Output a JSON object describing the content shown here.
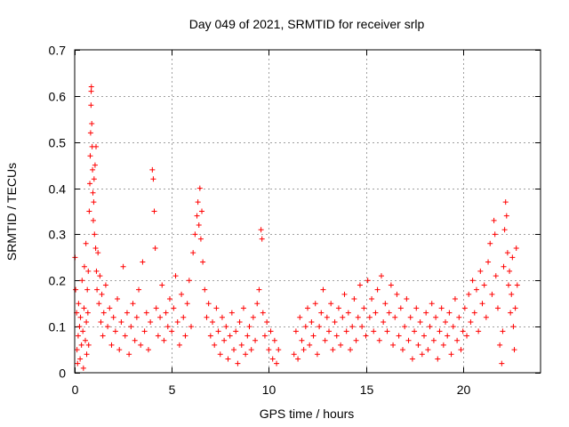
{
  "chart_data": {
    "type": "scatter",
    "title": "Day 049 of 2021, SRMTID for receiver srlp",
    "xlabel": "GPS time / hours",
    "ylabel": "SRMTID / TECUs",
    "xlim": [
      0,
      24
    ],
    "ylim": [
      0,
      0.7
    ],
    "xticks": [
      0,
      5,
      10,
      15,
      20
    ],
    "yticks": [
      0,
      0.1,
      0.2,
      0.3,
      0.4,
      0.5,
      0.6,
      0.7
    ],
    "grid": true,
    "marker": "plus",
    "color": "#ff0000",
    "series": [
      {
        "name": "SRMTID",
        "points": [
          [
            0.02,
            0.25
          ],
          [
            0.05,
            0.18
          ],
          [
            0.1,
            0.13
          ],
          [
            0.12,
            0.05
          ],
          [
            0.15,
            0.02
          ],
          [
            0.18,
            0.08
          ],
          [
            0.2,
            0.15
          ],
          [
            0.25,
            0.1
          ],
          [
            0.28,
            0.03
          ],
          [
            0.3,
            0.12
          ],
          [
            0.35,
            0.06
          ],
          [
            0.38,
            0.2
          ],
          [
            0.42,
            0.09
          ],
          [
            0.45,
            0.01
          ],
          [
            0.48,
            0.14
          ],
          [
            0.5,
            0.23
          ],
          [
            0.55,
            0.07
          ],
          [
            0.58,
            0.28
          ],
          [
            0.6,
            0.11
          ],
          [
            0.62,
            0.04
          ],
          [
            0.65,
            0.18
          ],
          [
            0.68,
            0.13
          ],
          [
            0.7,
            0.22
          ],
          [
            0.72,
            0.06
          ],
          [
            0.75,
            0.35
          ],
          [
            0.78,
            0.41
          ],
          [
            0.8,
            0.47
          ],
          [
            0.82,
            0.52
          ],
          [
            0.84,
            0.58
          ],
          [
            0.85,
            0.61
          ],
          [
            0.86,
            0.62
          ],
          [
            0.88,
            0.54
          ],
          [
            0.9,
            0.49
          ],
          [
            0.92,
            0.44
          ],
          [
            0.94,
            0.39
          ],
          [
            0.96,
            0.33
          ],
          [
            0.98,
            0.37
          ],
          [
            1.0,
            0.42
          ],
          [
            1.02,
            0.3
          ],
          [
            1.05,
            0.45
          ],
          [
            1.08,
            0.27
          ],
          [
            1.1,
            0.49
          ],
          [
            1.12,
            0.22
          ],
          [
            1.15,
            0.18
          ],
          [
            1.2,
            0.26
          ],
          [
            1.25,
            0.15
          ],
          [
            1.3,
            0.21
          ],
          [
            1.35,
            0.11
          ],
          [
            1.4,
            0.17
          ],
          [
            1.45,
            0.08
          ],
          [
            1.5,
            0.13
          ],
          [
            1.6,
            0.19
          ],
          [
            1.7,
            0.1
          ],
          [
            1.8,
            0.14
          ],
          [
            1.9,
            0.06
          ],
          [
            2.0,
            0.12
          ],
          [
            2.1,
            0.09
          ],
          [
            2.2,
            0.16
          ],
          [
            2.3,
            0.05
          ],
          [
            2.4,
            0.11
          ],
          [
            2.5,
            0.23
          ],
          [
            2.6,
            0.08
          ],
          [
            2.7,
            0.13
          ],
          [
            2.8,
            0.04
          ],
          [
            2.9,
            0.1
          ],
          [
            3.0,
            0.15
          ],
          [
            3.1,
            0.07
          ],
          [
            3.2,
            0.12
          ],
          [
            3.3,
            0.18
          ],
          [
            3.4,
            0.06
          ],
          [
            3.5,
            0.24
          ],
          [
            3.6,
            0.09
          ],
          [
            3.7,
            0.13
          ],
          [
            3.8,
            0.05
          ],
          [
            3.9,
            0.11
          ],
          [
            4.0,
            0.44
          ],
          [
            4.05,
            0.42
          ],
          [
            4.1,
            0.35
          ],
          [
            4.15,
            0.27
          ],
          [
            4.2,
            0.14
          ],
          [
            4.3,
            0.08
          ],
          [
            4.4,
            0.12
          ],
          [
            4.5,
            0.19
          ],
          [
            4.6,
            0.07
          ],
          [
            4.7,
            0.13
          ],
          [
            4.8,
            0.1
          ],
          [
            4.9,
            0.16
          ],
          [
            5.0,
            0.09
          ],
          [
            5.1,
            0.14
          ],
          [
            5.2,
            0.21
          ],
          [
            5.3,
            0.11
          ],
          [
            5.4,
            0.06
          ],
          [
            5.5,
            0.17
          ],
          [
            5.6,
            0.12
          ],
          [
            5.7,
            0.08
          ],
          [
            5.8,
            0.15
          ],
          [
            5.9,
            0.2
          ],
          [
            6.0,
            0.1
          ],
          [
            6.1,
            0.26
          ],
          [
            6.2,
            0.3
          ],
          [
            6.3,
            0.34
          ],
          [
            6.35,
            0.37
          ],
          [
            6.4,
            0.32
          ],
          [
            6.45,
            0.4
          ],
          [
            6.5,
            0.29
          ],
          [
            6.55,
            0.35
          ],
          [
            6.6,
            0.24
          ],
          [
            6.7,
            0.18
          ],
          [
            6.8,
            0.12
          ],
          [
            6.9,
            0.15
          ],
          [
            7.0,
            0.08
          ],
          [
            7.1,
            0.11
          ],
          [
            7.2,
            0.06
          ],
          [
            7.3,
            0.14
          ],
          [
            7.4,
            0.09
          ],
          [
            7.5,
            0.04
          ],
          [
            7.6,
            0.12
          ],
          [
            7.7,
            0.07
          ],
          [
            7.8,
            0.1
          ],
          [
            7.9,
            0.03
          ],
          [
            8.0,
            0.08
          ],
          [
            8.1,
            0.13
          ],
          [
            8.2,
            0.05
          ],
          [
            8.3,
            0.09
          ],
          [
            8.4,
            0.02
          ],
          [
            8.5,
            0.11
          ],
          [
            8.6,
            0.06
          ],
          [
            8.7,
            0.14
          ],
          [
            8.8,
            0.04
          ],
          [
            8.9,
            0.08
          ],
          [
            9.0,
            0.1
          ],
          [
            9.1,
            0.05
          ],
          [
            9.2,
            0.12
          ],
          [
            9.3,
            0.07
          ],
          [
            9.4,
            0.15
          ],
          [
            9.5,
            0.18
          ],
          [
            9.6,
            0.31
          ],
          [
            9.65,
            0.29
          ],
          [
            9.7,
            0.13
          ],
          [
            9.8,
            0.08
          ],
          [
            9.9,
            0.11
          ],
          [
            10.0,
            0.05
          ],
          [
            10.1,
            0.09
          ],
          [
            10.2,
            0.03
          ],
          [
            10.3,
            0.07
          ],
          [
            10.4,
            0.02
          ],
          [
            10.5,
            0.05
          ],
          [
            11.3,
            0.04
          ],
          [
            11.4,
            0.09
          ],
          [
            11.5,
            0.03
          ],
          [
            11.6,
            0.12
          ],
          [
            11.7,
            0.07
          ],
          [
            11.8,
            0.05
          ],
          [
            11.9,
            0.1
          ],
          [
            12.0,
            0.14
          ],
          [
            12.1,
            0.06
          ],
          [
            12.2,
            0.11
          ],
          [
            12.3,
            0.08
          ],
          [
            12.4,
            0.15
          ],
          [
            12.5,
            0.04
          ],
          [
            12.6,
            0.1
          ],
          [
            12.7,
            0.13
          ],
          [
            12.8,
            0.18
          ],
          [
            12.9,
            0.07
          ],
          [
            13.0,
            0.12
          ],
          [
            13.1,
            0.09
          ],
          [
            13.2,
            0.15
          ],
          [
            13.3,
            0.05
          ],
          [
            13.4,
            0.11
          ],
          [
            13.5,
            0.08
          ],
          [
            13.6,
            0.14
          ],
          [
            13.7,
            0.06
          ],
          [
            13.8,
            0.12
          ],
          [
            13.9,
            0.17
          ],
          [
            14.0,
            0.09
          ],
          [
            14.1,
            0.13
          ],
          [
            14.2,
            0.05
          ],
          [
            14.3,
            0.1
          ],
          [
            14.4,
            0.16
          ],
          [
            14.5,
            0.07
          ],
          [
            14.6,
            0.12
          ],
          [
            14.7,
            0.19
          ],
          [
            14.8,
            0.1
          ],
          [
            14.9,
            0.14
          ],
          [
            15.0,
            0.08
          ],
          [
            15.1,
            0.2
          ],
          [
            15.2,
            0.12
          ],
          [
            15.3,
            0.16
          ],
          [
            15.4,
            0.09
          ],
          [
            15.5,
            0.13
          ],
          [
            15.6,
            0.18
          ],
          [
            15.7,
            0.07
          ],
          [
            15.8,
            0.21
          ],
          [
            15.9,
            0.11
          ],
          [
            16.0,
            0.15
          ],
          [
            16.1,
            0.09
          ],
          [
            16.2,
            0.13
          ],
          [
            16.3,
            0.19
          ],
          [
            16.4,
            0.06
          ],
          [
            16.5,
            0.12
          ],
          [
            16.6,
            0.17
          ],
          [
            16.7,
            0.08
          ],
          [
            16.8,
            0.14
          ],
          [
            16.9,
            0.05
          ],
          [
            17.0,
            0.1
          ],
          [
            17.1,
            0.16
          ],
          [
            17.2,
            0.07
          ],
          [
            17.3,
            0.12
          ],
          [
            17.4,
            0.03
          ],
          [
            17.5,
            0.09
          ],
          [
            17.6,
            0.14
          ],
          [
            17.7,
            0.06
          ],
          [
            17.8,
            0.11
          ],
          [
            17.9,
            0.04
          ],
          [
            18.0,
            0.08
          ],
          [
            18.1,
            0.13
          ],
          [
            18.2,
            0.05
          ],
          [
            18.3,
            0.1
          ],
          [
            18.4,
            0.15
          ],
          [
            18.5,
            0.07
          ],
          [
            18.6,
            0.12
          ],
          [
            18.7,
            0.03
          ],
          [
            18.8,
            0.09
          ],
          [
            18.9,
            0.14
          ],
          [
            19.0,
            0.06
          ],
          [
            19.1,
            0.11
          ],
          [
            19.2,
            0.08
          ],
          [
            19.3,
            0.13
          ],
          [
            19.4,
            0.04
          ],
          [
            19.5,
            0.1
          ],
          [
            19.6,
            0.16
          ],
          [
            19.7,
            0.07
          ],
          [
            19.8,
            0.12
          ],
          [
            19.9,
            0.05
          ],
          [
            20.0,
            0.09
          ],
          [
            20.1,
            0.14
          ],
          [
            20.2,
            0.08
          ],
          [
            20.3,
            0.17
          ],
          [
            20.4,
            0.11
          ],
          [
            20.5,
            0.2
          ],
          [
            20.6,
            0.13
          ],
          [
            20.7,
            0.18
          ],
          [
            20.8,
            0.09
          ],
          [
            20.9,
            0.22
          ],
          [
            21.0,
            0.15
          ],
          [
            21.1,
            0.19
          ],
          [
            21.2,
            0.12
          ],
          [
            21.3,
            0.24
          ],
          [
            21.4,
            0.28
          ],
          [
            21.5,
            0.17
          ],
          [
            21.6,
            0.33
          ],
          [
            21.65,
            0.3
          ],
          [
            21.7,
            0.21
          ],
          [
            21.8,
            0.14
          ],
          [
            21.9,
            0.06
          ],
          [
            22.0,
            0.02
          ],
          [
            22.05,
            0.09
          ],
          [
            22.1,
            0.23
          ],
          [
            22.15,
            0.31
          ],
          [
            22.2,
            0.37
          ],
          [
            22.25,
            0.34
          ],
          [
            22.3,
            0.26
          ],
          [
            22.35,
            0.19
          ],
          [
            22.4,
            0.22
          ],
          [
            22.45,
            0.13
          ],
          [
            22.5,
            0.17
          ],
          [
            22.55,
            0.25
          ],
          [
            22.6,
            0.1
          ],
          [
            22.65,
            0.05
          ],
          [
            22.7,
            0.14
          ],
          [
            22.75,
            0.27
          ],
          [
            22.8,
            0.19
          ]
        ]
      }
    ]
  }
}
